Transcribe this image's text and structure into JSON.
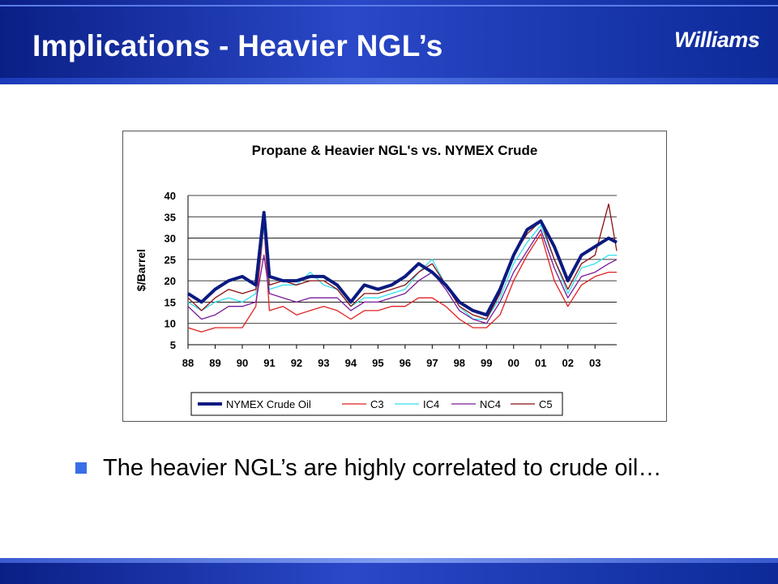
{
  "slide": {
    "title": "Implications - Heavier NGL’s",
    "logo": "Williams",
    "logo_mark": "®",
    "bullet": "The heavier NGL’s are highly correlated to crude oil…"
  },
  "chart_data": {
    "type": "line",
    "title": "Propane & Heavier NGL's vs. NYMEX Crude",
    "ylabel": "$/Barrel",
    "xlabel": "",
    "ylim": [
      5,
      40
    ],
    "yticks": [
      5,
      10,
      15,
      20,
      25,
      30,
      35,
      40
    ],
    "xlim": [
      1988,
      2003.8
    ],
    "xtick_labels": [
      "88",
      "89",
      "90",
      "91",
      "92",
      "93",
      "94",
      "95",
      "96",
      "97",
      "98",
      "99",
      "00",
      "01",
      "02",
      "03"
    ],
    "grid": "horizontal",
    "legend_position": "bottom",
    "x": [
      1988.0,
      1988.5,
      1989.0,
      1989.5,
      1990.0,
      1990.5,
      1990.8,
      1991.0,
      1991.5,
      1992.0,
      1992.5,
      1993.0,
      1993.5,
      1994.0,
      1994.5,
      1995.0,
      1995.5,
      1996.0,
      1996.5,
      1997.0,
      1997.5,
      1998.0,
      1998.5,
      1999.0,
      1999.5,
      2000.0,
      2000.5,
      2001.0,
      2001.5,
      2002.0,
      2002.5,
      2003.0,
      2003.5,
      2003.8
    ],
    "series": [
      {
        "name": "NYMEX Crude Oil",
        "color": "#0a1a80",
        "width": 4,
        "values": [
          17,
          15,
          18,
          20,
          21,
          19,
          36,
          21,
          20,
          20,
          21,
          21,
          19,
          15,
          19,
          18,
          19,
          21,
          24,
          22,
          19,
          15,
          13,
          12,
          18,
          26,
          32,
          34,
          28,
          20,
          26,
          28,
          30,
          29
        ]
      },
      {
        "name": "C3",
        "color": "#e02020",
        "width": 1.3,
        "values": [
          9,
          8,
          9,
          9,
          9,
          14,
          33,
          13,
          14,
          12,
          13,
          14,
          13,
          11,
          13,
          13,
          14,
          14,
          16,
          16,
          14,
          11,
          9,
          9,
          12,
          20,
          26,
          31,
          20,
          14,
          19,
          21,
          22,
          22
        ]
      },
      {
        "name": "IC4",
        "color": "#30e0f0",
        "width": 1.3,
        "values": [
          15,
          13,
          15,
          16,
          15,
          17,
          33,
          18,
          19,
          19,
          22,
          19,
          18,
          14,
          16,
          16,
          17,
          18,
          22,
          25,
          19,
          14,
          11,
          11,
          16,
          24,
          29,
          33,
          25,
          17,
          23,
          24,
          26,
          26
        ]
      },
      {
        "name": "NC4",
        "color": "#7a1a9a",
        "width": 1.3,
        "values": [
          14,
          11,
          12,
          14,
          14,
          15,
          26,
          17,
          16,
          15,
          16,
          16,
          16,
          13,
          15,
          15,
          16,
          17,
          20,
          22,
          18,
          13,
          11,
          10,
          15,
          22,
          27,
          32,
          23,
          16,
          21,
          22,
          24,
          25
        ]
      },
      {
        "name": "C5",
        "color": "#8a1010",
        "width": 1.3,
        "values": [
          16,
          13,
          16,
          18,
          17,
          18,
          34,
          19,
          20,
          19,
          20,
          20,
          18,
          14,
          17,
          17,
          18,
          19,
          22,
          24,
          19,
          14,
          12,
          11,
          17,
          26,
          31,
          34,
          25,
          18,
          24,
          26,
          38,
          27
        ]
      }
    ]
  }
}
